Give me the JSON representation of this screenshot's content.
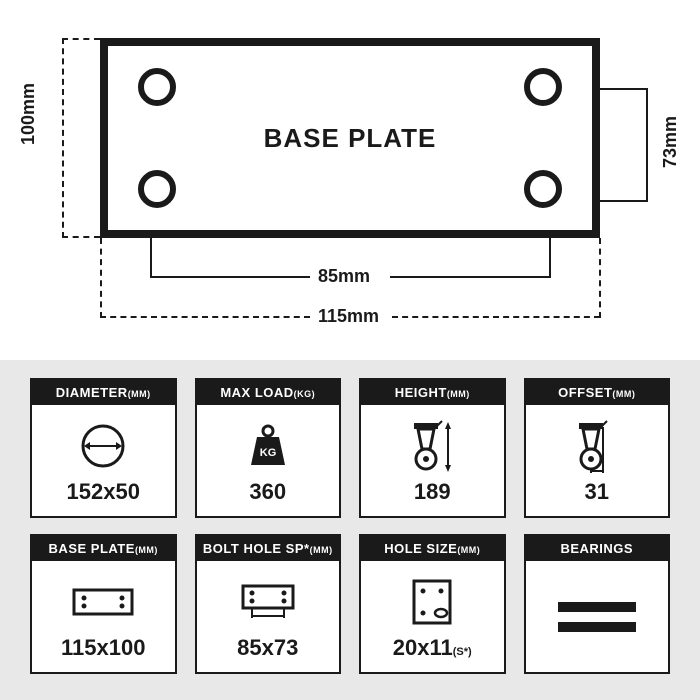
{
  "diagram": {
    "title": "BASE PLATE",
    "height_label": "100mm",
    "right_label": "73mm",
    "inner_width_label": "85mm",
    "outer_width_label": "115mm"
  },
  "cards": [
    {
      "title": "DIAMETER",
      "unit": "(MM)",
      "icon": "circle-arrow",
      "value": "152x50",
      "suffix": ""
    },
    {
      "title": "MAX LOAD",
      "unit": "(KG)",
      "icon": "weight",
      "value": "360",
      "suffix": ""
    },
    {
      "title": "HEIGHT",
      "unit": "(MM)",
      "icon": "caster-height",
      "value": "189",
      "suffix": ""
    },
    {
      "title": "OFFSET",
      "unit": "(MM)",
      "icon": "caster-offset",
      "value": "31",
      "suffix": ""
    },
    {
      "title": "BASE PLATE",
      "unit": "(MM)",
      "icon": "plate",
      "value": "115x100",
      "suffix": ""
    },
    {
      "title": "BOLT HOLE SP*",
      "unit": "(MM)",
      "icon": "plate-sp",
      "value": "85x73",
      "suffix": ""
    },
    {
      "title": "HOLE SIZE",
      "unit": "(MM)",
      "icon": "hole",
      "value": "20x11",
      "suffix": "(S*)"
    },
    {
      "title": "BEARINGS",
      "unit": "",
      "icon": "bearings",
      "value": "",
      "suffix": ""
    }
  ]
}
